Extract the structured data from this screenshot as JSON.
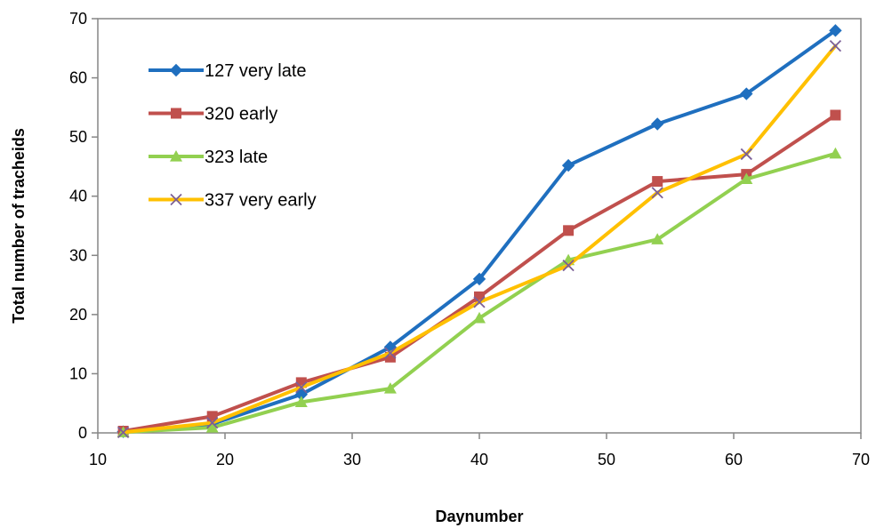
{
  "chart_data": {
    "type": "line",
    "title": "",
    "xlabel": "Daynumber",
    "ylabel": "Total number of tracheids",
    "xlim": [
      10,
      70
    ],
    "ylim": [
      0,
      70
    ],
    "xticks": [
      10,
      20,
      30,
      40,
      50,
      60,
      70
    ],
    "yticks": [
      0,
      10,
      20,
      30,
      40,
      50,
      60,
      70
    ],
    "grid": false,
    "legend_position": "top-left",
    "x": [
      12,
      19,
      26,
      33,
      40,
      47,
      54,
      61,
      68
    ],
    "series": [
      {
        "name": "127 very late",
        "color": "#1f6fbf",
        "marker": "diamond",
        "values": [
          0.2,
          1.5,
          6.5,
          14.5,
          26,
          45.2,
          52.2,
          57.3,
          68
        ]
      },
      {
        "name": "320 early",
        "color": "#c0504d",
        "marker": "square",
        "values": [
          0.3,
          2.8,
          8.5,
          12.8,
          23,
          34.2,
          42.5,
          43.7,
          53.7
        ]
      },
      {
        "name": "323 late",
        "color": "#92d050",
        "marker": "triangle",
        "values": [
          0.1,
          0.9,
          5.2,
          7.5,
          19.4,
          29.2,
          32.7,
          42.9,
          47.2
        ]
      },
      {
        "name": "337 very early",
        "color": "#ffc000",
        "marker": "x",
        "values": [
          0.1,
          1.7,
          7.7,
          13.5,
          22.1,
          28.3,
          40.6,
          47.1,
          65.4
        ]
      }
    ]
  }
}
